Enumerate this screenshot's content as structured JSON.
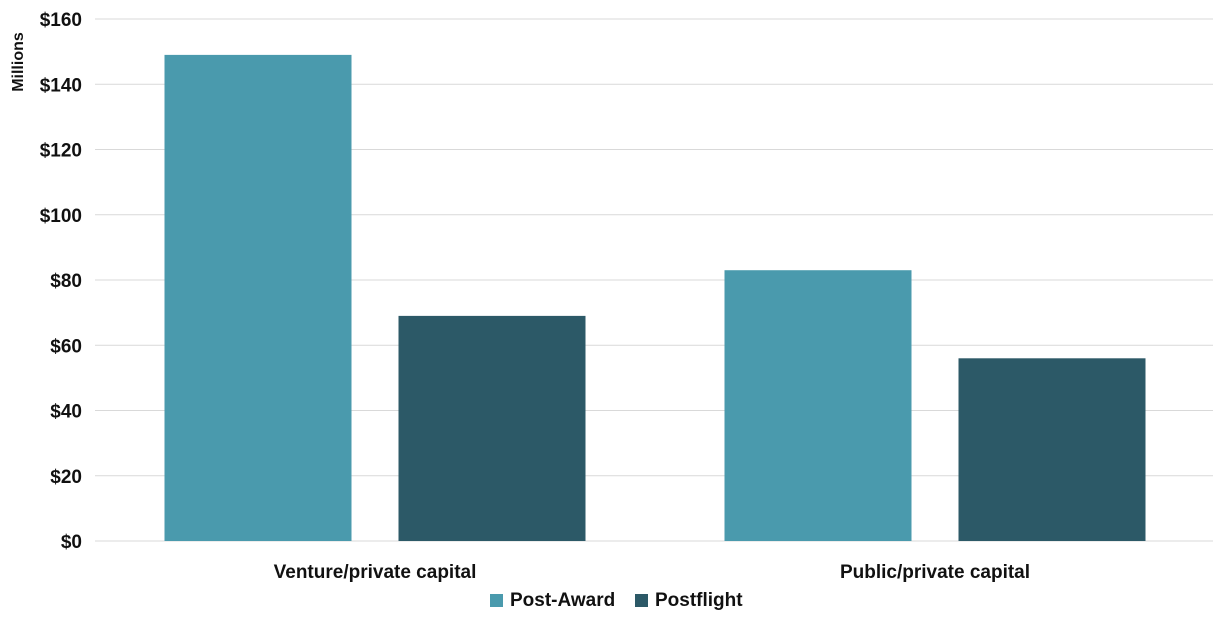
{
  "chart_data": {
    "type": "bar",
    "title": "",
    "xlabel": "",
    "ylabel": "Millions",
    "categories": [
      "Venture/private capital",
      "Public/private capital"
    ],
    "series": [
      {
        "name": "Post-Award",
        "values": [
          149,
          83
        ],
        "color": "#4a9aad"
      },
      {
        "name": "Postflight",
        "values": [
          69,
          56
        ],
        "color": "#2c5967"
      }
    ],
    "ylim": [
      0,
      160
    ],
    "yticks": [
      0,
      20,
      40,
      60,
      80,
      100,
      120,
      140,
      160
    ],
    "ytick_labels": [
      "$0",
      "$20",
      "$40",
      "$60",
      "$80",
      "$100",
      "$120",
      "$140",
      "$160"
    ],
    "grid": true,
    "legend_position": "bottom-center"
  }
}
